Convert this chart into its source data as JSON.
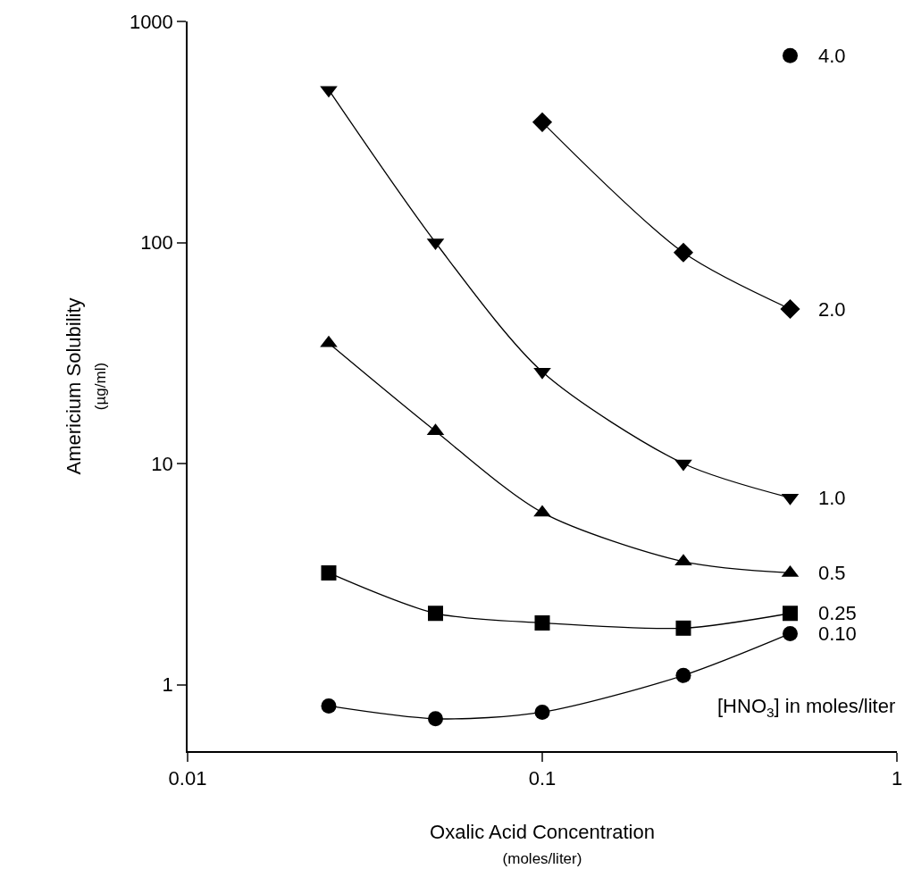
{
  "chart_data": {
    "type": "line",
    "xlabel": "Oxalic Acid Concentration\n(moles/liter)",
    "ylabel": "Americium Solubility\n(µg/ml)",
    "x": [
      0.025,
      0.05,
      0.1,
      0.25,
      0.5
    ],
    "series": [
      {
        "name": "0.10",
        "color": "#000000",
        "marker": "circle",
        "values": [
          0.8,
          0.7,
          0.75,
          1.1,
          1.7
        ]
      },
      {
        "name": "0.25",
        "color": "#000000",
        "marker": "square",
        "values": [
          3.2,
          2.1,
          1.9,
          1.8,
          2.1
        ]
      },
      {
        "name": "0.5",
        "color": "#000000",
        "marker": "triangle",
        "values": [
          35,
          14,
          6,
          3.6,
          3.2
        ]
      },
      {
        "name": "1.0",
        "color": "#000000",
        "marker": "triangle-down",
        "values": [
          490,
          100,
          26,
          10,
          7
        ]
      },
      {
        "name": "2.0",
        "color": "#000000",
        "marker": "diamond",
        "values": [
          null,
          null,
          350,
          90,
          50
        ]
      },
      {
        "name": "4.0",
        "color": "#000000",
        "marker": "circle",
        "type": "scatter",
        "values": [
          null,
          null,
          null,
          null,
          700
        ]
      }
    ],
    "annotations": [
      "[HNO$_{3}$] in moles/liter"
    ],
    "log": "xy",
    "xlim": [
      0.01,
      1
    ],
    "xticks": [
      0.01,
      0.1,
      1
    ],
    "ylim": [
      0.5,
      1000
    ],
    "yticks": [
      1,
      10,
      100,
      1000
    ],
    "grid": false,
    "legend": false,
    "line_style": "solid"
  }
}
